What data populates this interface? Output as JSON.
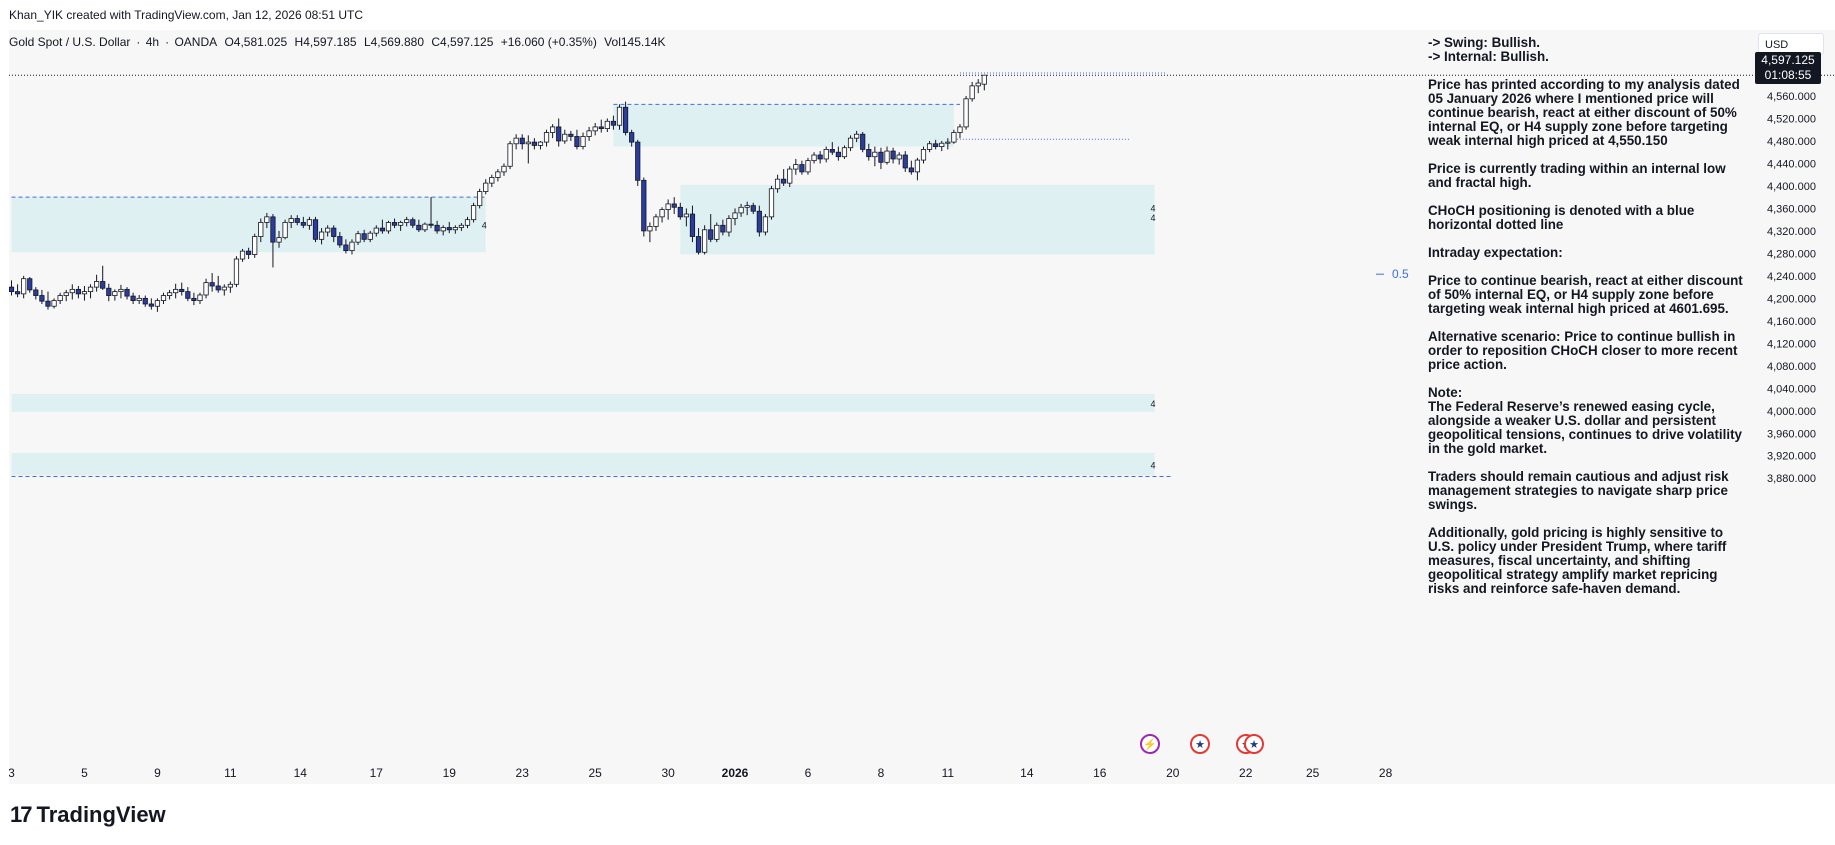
{
  "header": {
    "attribution": "Khan_YIK created with TradingView.com, Jan 12, 2026 08:51 UTC"
  },
  "legend": {
    "symbol": "Gold Spot / U.S. Dollar",
    "interval": "4h",
    "source": "OANDA",
    "open": "O4,581.025",
    "high": "H4,597.185",
    "low": "L4,569.880",
    "close": "C4,597.125",
    "change": "+16.060 (+0.35%)",
    "volume": "Vol145.14K",
    "separator": "·"
  },
  "price_axis": {
    "currency": "USD",
    "last_price": "4,597.125",
    "countdown": "01:08:55"
  },
  "annotation": {
    "swing": "-> Swing:  Bullish.",
    "internal": "-> Internal:  Bullish.",
    "paragraphs": [
      "Price has printed according to my analysis dated 05 January 2026 where I mentioned price will continue bearish, react at either discount of 50% internal EQ, or H4 supply zone before targeting weak internal high priced at 4,550.150",
      "Price is currently trading within an internal low and fractal high.",
      "CHoCH positioning is denoted with a blue horizontal dotted line",
      "Intraday expectation:",
      "Price to continue bearish, react at either discount of 50% internal EQ, or H4 supply zone before targeting weak internal high priced at 4601.695.",
      "Alternative scenario:  Price to continue bullish in order to reposition CHoCH closer to more recent price action.",
      "Note:\nThe Federal Reserve’s renewed easing cycle, alongside a weaker U.S. dollar and persistent geopolitical tensions, continues to drive volatility in the gold market.",
      "Traders should remain cautious and adjust risk management strategies to navigate sharp price swings.",
      "Additionally, gold pricing is highly sensitive to U.S. policy under President Trump, where tariff measures, fiscal uncertainty, and shifting geopolitical strategy amplify market repricing risks and reinforce safe-haven demand."
    ]
  },
  "footer": {
    "brand": "TradingView",
    "brand_mark": "17"
  },
  "colors": {
    "bull_body": "#ffffff",
    "bear_body": "#2a3c9e",
    "wick": "#131722",
    "zone_fill": "#dff0f2",
    "choch_line": "#3d6fe0",
    "background": "#f8f7f7"
  },
  "events": {
    "flash_icon": "lightning-icon",
    "us_icon": "us-flag-icon"
  },
  "chart_data": {
    "type": "candlestick",
    "y_ticks": [
      "4,560.000",
      "4,520.000",
      "4,480.000",
      "4,440.000",
      "4,400.000",
      "4,360.000",
      "4,320.000",
      "4,280.000",
      "4,240.000",
      "4,200.000",
      "4,160.000",
      "4,120.000",
      "4,080.000",
      "4,040.000",
      "4,000.000",
      "3,960.000",
      "3,920.000",
      "3,880.000"
    ],
    "y_tick_values": [
      4560,
      4520,
      4480,
      4440,
      4400,
      4360,
      4320,
      4280,
      4240,
      4200,
      4160,
      4120,
      4080,
      4040,
      4000,
      3960,
      3920,
      3880
    ],
    "x_ticks": [
      {
        "label": "3",
        "bar": 0
      },
      {
        "label": "5",
        "bar": 12
      },
      {
        "label": "9",
        "bar": 24
      },
      {
        "label": "11",
        "bar": 36
      },
      {
        "label": "14",
        "bar": 47.5
      },
      {
        "label": "17",
        "bar": 60
      },
      {
        "label": "19",
        "bar": 72
      },
      {
        "label": "23",
        "bar": 84
      },
      {
        "label": "25",
        "bar": 96
      },
      {
        "label": "30",
        "bar": 108
      },
      {
        "label": "2026",
        "bar": 119,
        "bold": true
      },
      {
        "label": "6",
        "bar": 131
      },
      {
        "label": "8",
        "bar": 143
      },
      {
        "label": "11",
        "bar": 154
      },
      {
        "label": "14",
        "bar": 167
      },
      {
        "label": "16",
        "bar": 179
      },
      {
        "label": "20",
        "bar": 191
      },
      {
        "label": "22",
        "bar": 203
      },
      {
        "label": "25",
        "bar": 214
      },
      {
        "label": "28",
        "bar": 226
      }
    ],
    "ohlc": [
      [
        4220,
        4232,
        4205,
        4212
      ],
      [
        4212,
        4225,
        4202,
        4208
      ],
      [
        4208,
        4240,
        4200,
        4235
      ],
      [
        4235,
        4238,
        4210,
        4215
      ],
      [
        4215,
        4220,
        4198,
        4205
      ],
      [
        4205,
        4215,
        4190,
        4195
      ],
      [
        4195,
        4212,
        4180,
        4186
      ],
      [
        4186,
        4200,
        4182,
        4196
      ],
      [
        4196,
        4210,
        4190,
        4205
      ],
      [
        4205,
        4215,
        4195,
        4210
      ],
      [
        4210,
        4225,
        4198,
        4216
      ],
      [
        4216,
        4222,
        4200,
        4208
      ],
      [
        4208,
        4222,
        4196,
        4212
      ],
      [
        4212,
        4225,
        4200,
        4220
      ],
      [
        4220,
        4242,
        4212,
        4230
      ],
      [
        4230,
        4258,
        4215,
        4218
      ],
      [
        4218,
        4226,
        4195,
        4205
      ],
      [
        4205,
        4216,
        4196,
        4212
      ],
      [
        4212,
        4224,
        4200,
        4216
      ],
      [
        4216,
        4220,
        4198,
        4204
      ],
      [
        4204,
        4210,
        4190,
        4196
      ],
      [
        4196,
        4206,
        4190,
        4200
      ],
      [
        4200,
        4205,
        4185,
        4190
      ],
      [
        4190,
        4200,
        4180,
        4186
      ],
      [
        4186,
        4200,
        4176,
        4196
      ],
      [
        4196,
        4210,
        4190,
        4205
      ],
      [
        4205,
        4215,
        4198,
        4210
      ],
      [
        4210,
        4226,
        4200,
        4216
      ],
      [
        4216,
        4228,
        4205,
        4212
      ],
      [
        4212,
        4220,
        4195,
        4200
      ],
      [
        4200,
        4210,
        4188,
        4196
      ],
      [
        4196,
        4210,
        4190,
        4206
      ],
      [
        4206,
        4235,
        4200,
        4228
      ],
      [
        4228,
        4245,
        4212,
        4222
      ],
      [
        4222,
        4240,
        4210,
        4215
      ],
      [
        4215,
        4225,
        4205,
        4220
      ],
      [
        4220,
        4230,
        4210,
        4225
      ],
      [
        4225,
        4275,
        4220,
        4270
      ],
      [
        4270,
        4288,
        4265,
        4284
      ],
      [
        4284,
        4290,
        4270,
        4278
      ],
      [
        4278,
        4315,
        4272,
        4310
      ],
      [
        4310,
        4342,
        4300,
        4335
      ],
      [
        4335,
        4352,
        4325,
        4345
      ],
      [
        4345,
        4350,
        4255,
        4300
      ],
      [
        4300,
        4320,
        4290,
        4308
      ],
      [
        4308,
        4340,
        4305,
        4335
      ],
      [
        4335,
        4348,
        4325,
        4342
      ],
      [
        4342,
        4348,
        4330,
        4335
      ],
      [
        4335,
        4345,
        4325,
        4330
      ],
      [
        4330,
        4345,
        4322,
        4340
      ],
      [
        4340,
        4345,
        4300,
        4305
      ],
      [
        4305,
        4325,
        4296,
        4318
      ],
      [
        4318,
        4330,
        4310,
        4325
      ],
      [
        4325,
        4330,
        4300,
        4310
      ],
      [
        4310,
        4318,
        4290,
        4295
      ],
      [
        4295,
        4305,
        4280,
        4285
      ],
      [
        4285,
        4305,
        4278,
        4300
      ],
      [
        4300,
        4320,
        4295,
        4315
      ],
      [
        4315,
        4322,
        4300,
        4305
      ],
      [
        4305,
        4320,
        4300,
        4316
      ],
      [
        4316,
        4330,
        4310,
        4325
      ],
      [
        4325,
        4340,
        4315,
        4320
      ],
      [
        4320,
        4338,
        4315,
        4335
      ],
      [
        4335,
        4342,
        4325,
        4330
      ],
      [
        4330,
        4338,
        4320,
        4335
      ],
      [
        4335,
        4345,
        4328,
        4340
      ],
      [
        4340,
        4344,
        4325,
        4330
      ],
      [
        4330,
        4340,
        4318,
        4322
      ],
      [
        4322,
        4335,
        4318,
        4332
      ],
      [
        4332,
        4380,
        4325,
        4330
      ],
      [
        4330,
        4338,
        4315,
        4320
      ],
      [
        4320,
        4330,
        4312,
        4326
      ],
      [
        4326,
        4336,
        4316,
        4322
      ],
      [
        4322,
        4330,
        4315,
        4326
      ],
      [
        4326,
        4334,
        4320,
        4330
      ],
      [
        4330,
        4345,
        4325,
        4340
      ],
      [
        4340,
        4370,
        4335,
        4365
      ],
      [
        4365,
        4395,
        4360,
        4390
      ],
      [
        4390,
        4412,
        4385,
        4405
      ],
      [
        4405,
        4420,
        4398,
        4415
      ],
      [
        4415,
        4430,
        4408,
        4425
      ],
      [
        4425,
        4440,
        4418,
        4435
      ],
      [
        4435,
        4480,
        4430,
        4475
      ],
      [
        4475,
        4492,
        4465,
        4485
      ],
      [
        4485,
        4492,
        4465,
        4475
      ],
      [
        4475,
        4490,
        4440,
        4478
      ],
      [
        4478,
        4485,
        4465,
        4472
      ],
      [
        4472,
        4480,
        4465,
        4478
      ],
      [
        4478,
        4500,
        4470,
        4495
      ],
      [
        4495,
        4510,
        4485,
        4505
      ],
      [
        4505,
        4520,
        4470,
        4480
      ],
      [
        4480,
        4500,
        4475,
        4492
      ],
      [
        4492,
        4498,
        4480,
        4488
      ],
      [
        4488,
        4500,
        4465,
        4470
      ],
      [
        4470,
        4495,
        4465,
        4488
      ],
      [
        4488,
        4505,
        4480,
        4498
      ],
      [
        4498,
        4512,
        4490,
        4505
      ],
      [
        4505,
        4518,
        4495,
        4502
      ],
      [
        4502,
        4520,
        4496,
        4515
      ],
      [
        4515,
        4525,
        4500,
        4508
      ],
      [
        4508,
        4545,
        4500,
        4540
      ],
      [
        4540,
        4550,
        4490,
        4495
      ],
      [
        4495,
        4500,
        4470,
        4478
      ],
      [
        4478,
        4482,
        4400,
        4410
      ],
      [
        4410,
        4415,
        4310,
        4320
      ],
      [
        4320,
        4335,
        4300,
        4328
      ],
      [
        4328,
        4350,
        4320,
        4345
      ],
      [
        4345,
        4362,
        4335,
        4358
      ],
      [
        4358,
        4376,
        4340,
        4368
      ],
      [
        4368,
        4380,
        4350,
        4362
      ],
      [
        4362,
        4370,
        4340,
        4345
      ],
      [
        4345,
        4360,
        4328,
        4350
      ],
      [
        4350,
        4365,
        4300,
        4310
      ],
      [
        4310,
        4325,
        4278,
        4282
      ],
      [
        4282,
        4330,
        4278,
        4322
      ],
      [
        4322,
        4350,
        4300,
        4305
      ],
      [
        4305,
        4335,
        4300,
        4330
      ],
      [
        4330,
        4340,
        4312,
        4318
      ],
      [
        4318,
        4348,
        4310,
        4342
      ],
      [
        4342,
        4360,
        4330,
        4352
      ],
      [
        4352,
        4368,
        4345,
        4362
      ],
      [
        4362,
        4372,
        4348,
        4365
      ],
      [
        4365,
        4370,
        4350,
        4355
      ],
      [
        4355,
        4365,
        4310,
        4318
      ],
      [
        4318,
        4350,
        4312,
        4345
      ],
      [
        4345,
        4400,
        4340,
        4395
      ],
      [
        4395,
        4420,
        4388,
        4412
      ],
      [
        4412,
        4430,
        4400,
        4405
      ],
      [
        4405,
        4435,
        4398,
        4430
      ],
      [
        4430,
        4448,
        4420,
        4438
      ],
      [
        4438,
        4445,
        4420,
        4425
      ],
      [
        4425,
        4450,
        4420,
        4445
      ],
      [
        4445,
        4460,
        4440,
        4455
      ],
      [
        4455,
        4462,
        4440,
        4448
      ],
      [
        4448,
        4470,
        4442,
        4465
      ],
      [
        4465,
        4478,
        4455,
        4460
      ],
      [
        4460,
        4470,
        4445,
        4452
      ],
      [
        4452,
        4472,
        4448,
        4468
      ],
      [
        4468,
        4490,
        4462,
        4485
      ],
      [
        4485,
        4498,
        4478,
        4492
      ],
      [
        4492,
        4496,
        4460,
        4465
      ],
      [
        4465,
        4475,
        4445,
        4452
      ],
      [
        4452,
        4470,
        4435,
        4460
      ],
      [
        4460,
        4468,
        4430,
        4442
      ],
      [
        4442,
        4470,
        4438,
        4462
      ],
      [
        4462,
        4468,
        4440,
        4448
      ],
      [
        4448,
        4460,
        4438,
        4455
      ],
      [
        4455,
        4462,
        4425,
        4432
      ],
      [
        4432,
        4445,
        4420,
        4425
      ],
      [
        4425,
        4450,
        4410,
        4446
      ],
      [
        4446,
        4470,
        4440,
        4465
      ],
      [
        4465,
        4480,
        4460,
        4475
      ],
      [
        4475,
        4482,
        4465,
        4470
      ],
      [
        4470,
        4480,
        4462,
        4476
      ],
      [
        4476,
        4485,
        4465,
        4478
      ],
      [
        4478,
        4500,
        4475,
        4495
      ],
      [
        4495,
        4510,
        4485,
        4505
      ],
      [
        4505,
        4560,
        4500,
        4555
      ],
      [
        4555,
        4585,
        4550,
        4578
      ],
      [
        4578,
        4590,
        4565,
        4583
      ],
      [
        4581,
        4597,
        4570,
        4597
      ]
    ],
    "zones": [
      {
        "bar_from": 0,
        "bar_to": 78,
        "price_from": 4282,
        "price_to": 4380
      },
      {
        "bar_from": 99,
        "bar_to": 155,
        "price_from": 4470,
        "price_to": 4545
      },
      {
        "bar_from": 110,
        "bar_to": 188,
        "price_from": 4278,
        "price_to": 4402
      },
      {
        "bar_from": 0,
        "bar_to": 188,
        "price_from": 3998,
        "price_to": 4030
      },
      {
        "bar_from": 0,
        "bar_to": 188,
        "price_from": 3885,
        "price_to": 3925
      }
    ],
    "zone_labels": [
      {
        "text": "4",
        "bar": 78,
        "price": 4330
      },
      {
        "text": "4",
        "bar": 188,
        "price": 4360
      },
      {
        "text": "4",
        "bar": 188,
        "price": 4343
      },
      {
        "text": "4",
        "bar": 188,
        "price": 4012
      },
      {
        "text": "4",
        "bar": 188,
        "price": 3903
      }
    ],
    "levels": [
      {
        "price": 4380,
        "bar_from": 0,
        "bar_to": 78,
        "style": "dashed"
      },
      {
        "price": 4545,
        "bar_from": 99,
        "bar_to": 156,
        "style": "dashed"
      },
      {
        "price": 4483,
        "bar_from": 155,
        "bar_to": 184,
        "style": "dotted"
      },
      {
        "price": 4601,
        "bar_from": 156,
        "bar_to": 190,
        "style": "dotted"
      },
      {
        "price": 3883,
        "bar_from": 0,
        "bar_to": 191,
        "style": "dashed"
      }
    ],
    "eq_label": {
      "text": "0.5",
      "price": 4243
    }
  }
}
